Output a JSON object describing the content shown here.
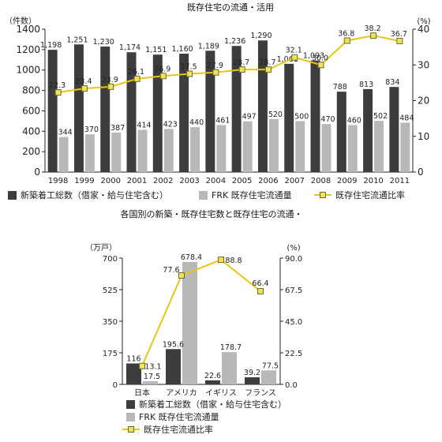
{
  "colors": {
    "new_construction": "#3d3d3d",
    "frk": "#b8b8b8",
    "ratio_line": "#e6c619",
    "ratio_marker_fill": "#f2e15a",
    "ratio_marker_stroke": "#6b6b2a"
  },
  "chart_data": [
    {
      "type": "bar",
      "title": "既存住宅の流通・活用",
      "y_left_unit": "（件数）",
      "y_right_unit": "(%)",
      "ylim_left": [
        0,
        1400
      ],
      "ylim_right": [
        0,
        40
      ],
      "yticks_left": [
        "0",
        "200",
        "400",
        "600",
        "800",
        "1000",
        "1200",
        "1400"
      ],
      "yticks_right": [
        "0",
        "10",
        "20",
        "30",
        "40"
      ],
      "categories": [
        "1998",
        "1999",
        "2000",
        "2001",
        "2002",
        "2003",
        "2004",
        "2005",
        "2006",
        "2007",
        "2008",
        "2009",
        "2010",
        "2011"
      ],
      "series": [
        {
          "name": "新築着工総数（借家・給与住宅含む）",
          "kind": "bar",
          "axis": "left",
          "values": [
            1198,
            1251,
            1230,
            1174,
            1151,
            1160,
            1189,
            1236,
            1290,
            1061,
            1093,
            788,
            813,
            834
          ],
          "labels": [
            "1,198",
            "1,251",
            "1,230",
            "1,174",
            "1,151",
            "1,160",
            "1,189",
            "1,236",
            "1,290",
            "1,061",
            "1,093",
            "788",
            "813",
            "834"
          ]
        },
        {
          "name": "FRK 既存住宅流通量",
          "kind": "bar",
          "axis": "left",
          "values": [
            344,
            370,
            387,
            414,
            423,
            440,
            461,
            497,
            520,
            500,
            470,
            460,
            502,
            484
          ],
          "labels": [
            "344",
            "370",
            "387",
            "414",
            "423",
            "440",
            "461",
            "497",
            "520",
            "500",
            "470",
            "460",
            "502",
            "484"
          ]
        },
        {
          "name": "既存住宅流通比率",
          "kind": "line",
          "axis": "right",
          "values": [
            22.3,
            23.4,
            23.9,
            26.1,
            26.9,
            27.5,
            27.9,
            28.7,
            28.7,
            32.1,
            30.0,
            36.8,
            38.2,
            36.7
          ],
          "labels": [
            "22.3",
            "23.4",
            "23.9",
            "26.1",
            "26.9",
            "27.5",
            "27.9",
            "28.7",
            "28.7",
            "32.1",
            "30.0",
            "36.8",
            "38.2",
            "36.7"
          ]
        }
      ],
      "legend_position": "bottom",
      "grid": false
    },
    {
      "type": "bar",
      "title": "各国別の新築・既存住宅数と既存住宅の流通・",
      "y_left_unit": "（万戸）",
      "y_right_unit": "(%)",
      "ylim_left": [
        0,
        700
      ],
      "ylim_right": [
        0,
        90
      ],
      "yticks_left": [
        "0",
        "175",
        "350",
        "525",
        "700"
      ],
      "yticks_right": [
        "0.0",
        "22.5",
        "45.0",
        "67.5",
        "90.0"
      ],
      "categories": [
        "日本",
        "アメリカ",
        "イギリス",
        "フランス"
      ],
      "series": [
        {
          "name": "新築着工総数（借家・給与住宅含む）",
          "kind": "bar",
          "axis": "left",
          "values": [
            116,
            195.6,
            22.6,
            39.2
          ],
          "labels": [
            "116",
            "195.6",
            "22.6",
            "39.2"
          ]
        },
        {
          "name": "FRK 既存住宅流通量",
          "kind": "bar",
          "axis": "left",
          "values": [
            17.5,
            678.4,
            178.7,
            77.5
          ],
          "labels": [
            "17.5",
            "678.4",
            "178.7",
            "77.5"
          ]
        },
        {
          "name": "既存住宅流通比率",
          "kind": "line",
          "axis": "right",
          "values": [
            13.1,
            77.6,
            88.8,
            66.4
          ],
          "labels": [
            "13.1",
            "77.6",
            "88.8",
            "66.4"
          ]
        }
      ],
      "legend_position": "bottom",
      "grid": false
    }
  ]
}
